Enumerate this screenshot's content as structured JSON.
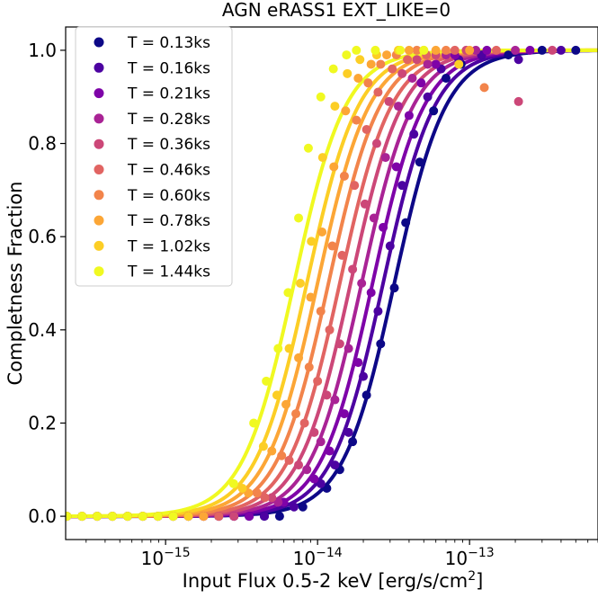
{
  "chart_data": {
    "type": "scatter",
    "title": "AGN eRASS1 EXT_LIKE=0",
    "xlabel": "Input Flux 0.5-2 keV [erg/s/cm",
    "xlabel_sup": "2",
    "xlabel_end": "]",
    "ylabel": "Completness Fraction",
    "xscale": "log",
    "xlim": [
      2.2e-16,
      7e-13
    ],
    "ylim": [
      -0.05,
      1.05
    ],
    "xticks": [
      {
        "value": 1e-15,
        "base": "10",
        "exp": "−15"
      },
      {
        "value": 1e-14,
        "base": "10",
        "exp": "−14"
      },
      {
        "value": 1e-13,
        "base": "10",
        "exp": "−13"
      }
    ],
    "yticks": [
      {
        "value": 0.0,
        "label": "0.0"
      },
      {
        "value": 0.2,
        "label": "0.2"
      },
      {
        "value": 0.4,
        "label": "0.4"
      },
      {
        "value": 0.6,
        "label": "0.6"
      },
      {
        "value": 0.8,
        "label": "0.8"
      },
      {
        "value": 1.0,
        "label": "1.0"
      }
    ],
    "legend_position": "upper-left",
    "series": [
      {
        "name": "T = 0.13ks",
        "color": "#0d0887",
        "x50": 3.2e-14,
        "width": 0.17,
        "points": [
          [
            8e-15,
            0.02
          ],
          [
            1.15e-14,
            0.06
          ],
          [
            1.4e-14,
            0.1
          ],
          [
            1.7e-14,
            0.16
          ],
          [
            2.1e-14,
            0.26
          ],
          [
            2.6e-14,
            0.37
          ],
          [
            3.2e-14,
            0.49
          ],
          [
            3.8e-14,
            0.63
          ],
          [
            4.7e-14,
            0.76
          ],
          [
            5.8e-14,
            0.87
          ],
          [
            7e-14,
            0.94
          ],
          [
            8.8e-14,
            0.97
          ],
          [
            1.2e-13,
            0.99
          ],
          [
            1.8e-13,
            0.99
          ],
          [
            3e-13,
            1.0
          ],
          [
            5e-13,
            1.0
          ]
        ]
      },
      {
        "name": "T = 0.16ks",
        "color": "#4c02a1",
        "x50": 2.7e-14,
        "width": 0.17,
        "points": [
          [
            7e-15,
            0.02
          ],
          [
            1.05e-14,
            0.07
          ],
          [
            1.3e-14,
            0.11
          ],
          [
            1.6e-14,
            0.18
          ],
          [
            2e-14,
            0.3
          ],
          [
            2.5e-14,
            0.44
          ],
          [
            3e-14,
            0.58
          ],
          [
            3.6e-14,
            0.71
          ],
          [
            4.3e-14,
            0.82
          ],
          [
            5.3e-14,
            0.9
          ],
          [
            6.5e-14,
            0.96
          ],
          [
            8.5e-14,
            0.98
          ],
          [
            1.2e-13,
            0.99
          ],
          [
            2.1e-13,
            0.98
          ],
          [
            4e-13,
            1.0
          ]
        ]
      },
      {
        "name": "T = 0.21ks",
        "color": "#7e03a8",
        "x50": 2.3e-14,
        "width": 0.17,
        "points": [
          [
            6e-15,
            0.03
          ],
          [
            9.5e-15,
            0.08
          ],
          [
            1.2e-14,
            0.14
          ],
          [
            1.5e-14,
            0.22
          ],
          [
            1.85e-14,
            0.33
          ],
          [
            2.25e-14,
            0.48
          ],
          [
            2.7e-14,
            0.62
          ],
          [
            3.3e-14,
            0.75
          ],
          [
            4e-14,
            0.86
          ],
          [
            4.8e-14,
            0.93
          ],
          [
            6e-14,
            0.97
          ],
          [
            8e-14,
            0.99
          ],
          [
            1.3e-13,
            1.0
          ],
          [
            2.5e-13,
            1.0
          ]
        ]
      },
      {
        "name": "T = 0.28ks",
        "color": "#a92395",
        "x50": 1.95e-14,
        "width": 0.17,
        "points": [
          [
            5.5e-15,
            0.03
          ],
          [
            8.5e-15,
            0.1
          ],
          [
            1.05e-14,
            0.16
          ],
          [
            1.3e-14,
            0.25
          ],
          [
            1.6e-14,
            0.36
          ],
          [
            1.95e-14,
            0.5
          ],
          [
            2.35e-14,
            0.64
          ],
          [
            2.8e-14,
            0.77
          ],
          [
            3.4e-14,
            0.88
          ],
          [
            4.2e-14,
            0.94
          ],
          [
            5.3e-14,
            0.97
          ],
          [
            7e-14,
            0.99
          ],
          [
            1.1e-13,
            1.0
          ],
          [
            2e-13,
            1.0
          ]
        ]
      },
      {
        "name": "T = 0.36ks",
        "color": "#cc4778",
        "x50": 1.65e-14,
        "width": 0.17,
        "points": [
          [
            5e-15,
            0.04
          ],
          [
            7.5e-15,
            0.11
          ],
          [
            9.5e-15,
            0.18
          ],
          [
            1.15e-14,
            0.26
          ],
          [
            1.4e-14,
            0.37
          ],
          [
            1.7e-14,
            0.53
          ],
          [
            2.05e-14,
            0.67
          ],
          [
            2.45e-14,
            0.8
          ],
          [
            2.95e-14,
            0.89
          ],
          [
            3.6e-14,
            0.95
          ],
          [
            4.5e-14,
            0.98
          ],
          [
            6e-14,
            0.99
          ],
          [
            9.5e-14,
            1.0
          ],
          [
            2.1e-13,
            0.89
          ],
          [
            3.5e-13,
            1.0
          ]
        ]
      },
      {
        "name": "T = 0.46ks",
        "color": "#e16462",
        "x50": 1.4e-14,
        "width": 0.17,
        "points": [
          [
            4.5e-15,
            0.04
          ],
          [
            6.5e-15,
            0.12
          ],
          [
            8.2e-15,
            0.2
          ],
          [
            1e-14,
            0.29
          ],
          [
            1.2e-14,
            0.4
          ],
          [
            1.45e-14,
            0.56
          ],
          [
            1.75e-14,
            0.71
          ],
          [
            2.1e-14,
            0.83
          ],
          [
            2.5e-14,
            0.91
          ],
          [
            3.1e-14,
            0.96
          ],
          [
            3.9e-14,
            0.98
          ],
          [
            5.2e-14,
            0.99
          ],
          [
            8e-14,
            1.0
          ],
          [
            1.5e-13,
            1.0
          ]
        ]
      },
      {
        "name": "T = 0.60ks",
        "color": "#f2844b",
        "x50": 1.18e-14,
        "width": 0.17,
        "points": [
          [
            4e-15,
            0.05
          ],
          [
            5.8e-15,
            0.13
          ],
          [
            7.2e-15,
            0.22
          ],
          [
            8.8e-15,
            0.32
          ],
          [
            1.05e-14,
            0.44
          ],
          [
            1.25e-14,
            0.58
          ],
          [
            1.5e-14,
            0.73
          ],
          [
            1.8e-14,
            0.85
          ],
          [
            2.15e-14,
            0.93
          ],
          [
            2.6e-14,
            0.97
          ],
          [
            3.3e-14,
            0.99
          ],
          [
            4.5e-14,
            1.0
          ],
          [
            7e-14,
            1.0
          ],
          [
            1.25e-13,
            0.92
          ]
        ]
      },
      {
        "name": "T = 0.78ks",
        "color": "#fca636",
        "x50": 1e-14,
        "width": 0.17,
        "points": [
          [
            3.5e-15,
            0.05
          ],
          [
            5e-15,
            0.14
          ],
          [
            6.2e-15,
            0.24
          ],
          [
            7.5e-15,
            0.34
          ],
          [
            9e-15,
            0.47
          ],
          [
            1.07e-14,
            0.61
          ],
          [
            1.28e-14,
            0.75
          ],
          [
            1.53e-14,
            0.87
          ],
          [
            1.85e-14,
            0.94
          ],
          [
            2.25e-14,
            0.97
          ],
          [
            2.85e-14,
            0.99
          ],
          [
            4e-14,
            1.0
          ],
          [
            6e-14,
            1.0
          ],
          [
            1e-13,
            1.0
          ]
        ]
      },
      {
        "name": "T = 1.02ks",
        "color": "#fcce25",
        "x50": 8.5e-15,
        "width": 0.17,
        "points": [
          [
            3.2e-15,
            0.06
          ],
          [
            4.4e-15,
            0.15
          ],
          [
            5.4e-15,
            0.26
          ],
          [
            6.5e-15,
            0.36
          ],
          [
            7.7e-15,
            0.5
          ],
          [
            9.1e-15,
            0.59
          ],
          [
            1.08e-14,
            0.77
          ],
          [
            1.3e-14,
            0.88
          ],
          [
            1.57e-14,
            0.95
          ],
          [
            1.9e-14,
            0.98
          ],
          [
            2.45e-14,
            0.99
          ],
          [
            3.4e-14,
            1.0
          ],
          [
            5e-14,
            1.0
          ],
          [
            8.5e-14,
            0.97
          ]
        ]
      },
      {
        "name": "T = 1.44ks",
        "color": "#f0f921",
        "x50": 7e-15,
        "width": 0.17,
        "points": [
          [
            2.8e-15,
            0.07
          ],
          [
            3.8e-15,
            0.2
          ],
          [
            4.6e-15,
            0.29
          ],
          [
            5.5e-15,
            0.36
          ],
          [
            6.4e-15,
            0.48
          ],
          [
            7.5e-15,
            0.64
          ],
          [
            8.7e-15,
            0.79
          ],
          [
            1.05e-14,
            0.9
          ],
          [
            1.27e-14,
            0.96
          ],
          [
            1.55e-14,
            0.99
          ],
          [
            1.8e-14,
            1.0
          ],
          [
            2.4e-14,
            1.0
          ],
          [
            3.5e-14,
            1.0
          ],
          [
            5e-14,
            1.0
          ]
        ]
      }
    ]
  }
}
